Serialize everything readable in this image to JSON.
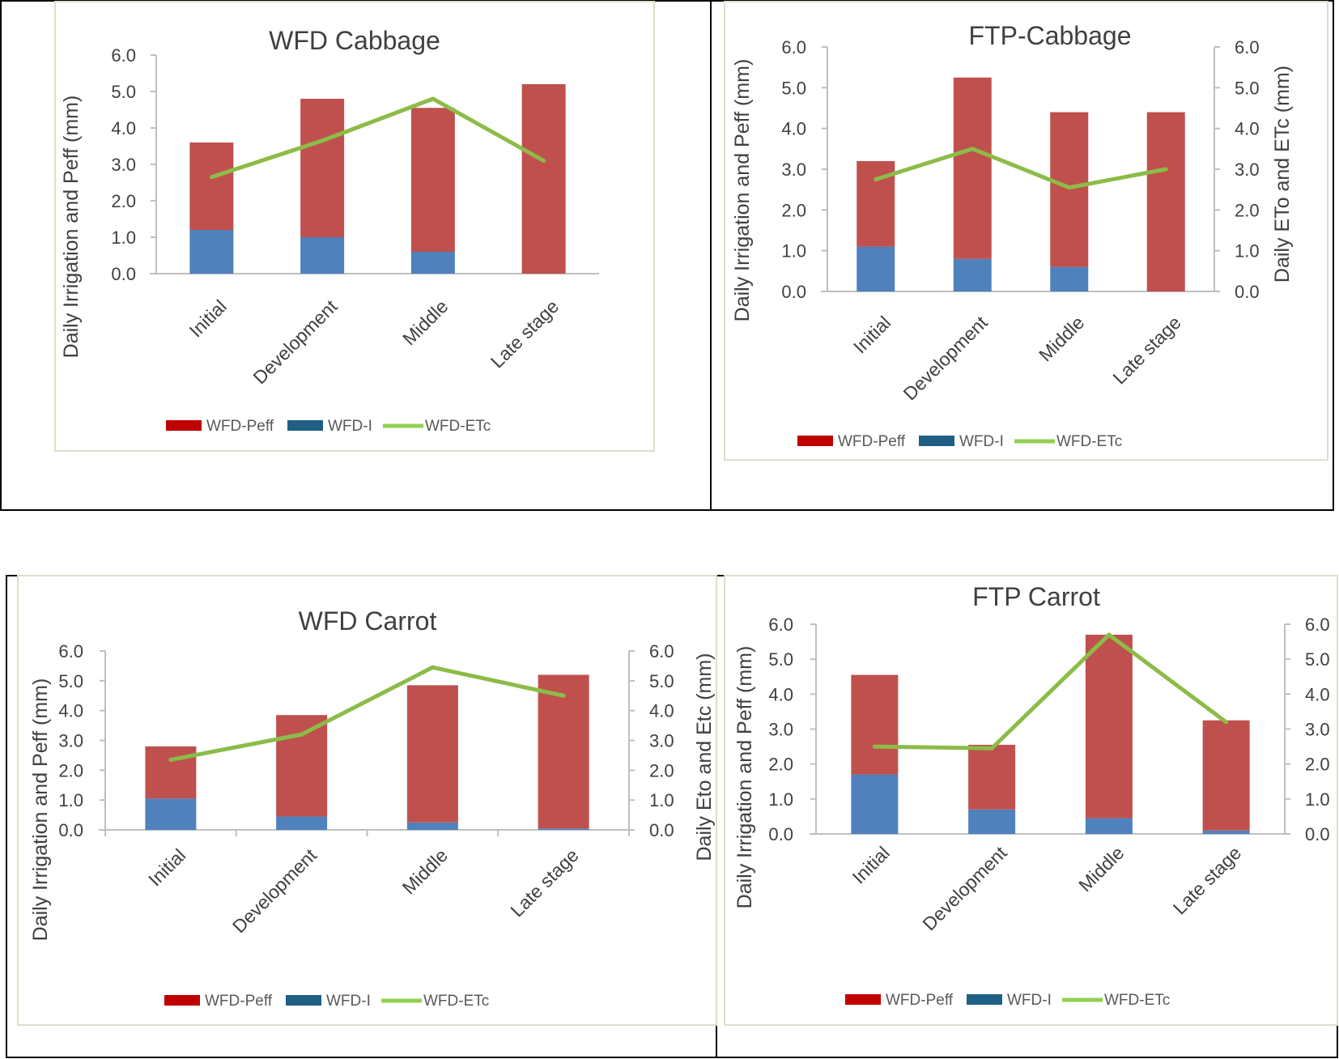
{
  "colors": {
    "peff": "#c0504d",
    "irrigation": "#4f81bd",
    "etc": "#8cbc48",
    "legend_peff": "#c00000",
    "legend_irrigation": "#1f5f84",
    "legend_etc": "#92d050",
    "axis": "#bfbfbf",
    "border": "#000000",
    "frame": "#d9e1c8"
  },
  "chart_data": [
    {
      "id": "wfd-cabbage",
      "type": "bar",
      "stacked": true,
      "title": "WFD Cabbage",
      "categories": [
        "Initial",
        "Development",
        "Middle",
        "Late stage"
      ],
      "series": [
        {
          "name": "WFD-I",
          "kind": "bar",
          "values": [
            1.2,
            1.0,
            0.6,
            0.0
          ]
        },
        {
          "name": "WFD-Peff",
          "kind": "bar",
          "values": [
            2.4,
            3.8,
            3.95,
            5.2
          ]
        },
        {
          "name": "WFD-ETc",
          "kind": "line",
          "values": [
            2.65,
            3.65,
            4.8,
            3.1
          ]
        }
      ],
      "legend": [
        "WFD-Peff",
        "WFD-I",
        "WFD-ETc"
      ],
      "ylabel": "Daily Irrigation and Peff (mm)",
      "y2label": "",
      "ylim": [
        0,
        6
      ],
      "yticks": [
        "0.0",
        "1.0",
        "2.0",
        "3.0",
        "4.0",
        "5.0",
        "6.0"
      ],
      "y2ticks": []
    },
    {
      "id": "ftp-cabbage",
      "type": "bar",
      "stacked": true,
      "title": "FTP-Cabbage",
      "categories": [
        "Initial",
        "Development",
        "Middle",
        "Late stage"
      ],
      "series": [
        {
          "name": "WFD-I",
          "kind": "bar",
          "values": [
            1.1,
            0.8,
            0.6,
            0.0
          ]
        },
        {
          "name": "WFD-Peff",
          "kind": "bar",
          "values": [
            2.1,
            4.45,
            3.8,
            4.4
          ]
        },
        {
          "name": "WFD-ETc",
          "kind": "line",
          "values": [
            2.75,
            3.5,
            2.55,
            3.0
          ]
        }
      ],
      "legend": [
        "WFD-Peff",
        "WFD-I",
        "WFD-ETc"
      ],
      "ylabel": "Daily Irrigation and Peff (mm)",
      "y2label": "Daily ETo and ETc (mm)",
      "ylim": [
        0,
        6
      ],
      "yticks": [
        "0.0",
        "1.0",
        "2.0",
        "3.0",
        "4.0",
        "5.0",
        "6.0"
      ],
      "y2ticks": [
        "0.0",
        "1.0",
        "2.0",
        "3.0",
        "4.0",
        "5.0",
        "6.0"
      ]
    },
    {
      "id": "wfd-carrot",
      "type": "bar",
      "stacked": true,
      "title": "WFD Carrot",
      "categories": [
        "Initial",
        "Development",
        "Middle",
        "Late stage"
      ],
      "series": [
        {
          "name": "WFD-I",
          "kind": "bar",
          "values": [
            1.05,
            0.45,
            0.25,
            0.05
          ]
        },
        {
          "name": "WFD-Peff",
          "kind": "bar",
          "values": [
            1.75,
            3.4,
            4.6,
            5.15
          ]
        },
        {
          "name": "WFD-ETc",
          "kind": "line",
          "values": [
            2.35,
            3.2,
            5.45,
            4.5
          ]
        }
      ],
      "legend": [
        "WFD-Peff",
        "WFD-I",
        "WFD-ETc"
      ],
      "ylabel": "Daily Irrigation and Peff (mm)",
      "y2label": "Daily Eto and Etc (mm)",
      "ylim": [
        0,
        6
      ],
      "yticks": [
        "0.0",
        "1.0",
        "2.0",
        "3.0",
        "4.0",
        "5.0",
        "6.0"
      ],
      "y2ticks": [
        "0.0",
        "1.0",
        "2.0",
        "3.0",
        "4.0",
        "5.0",
        "6.0"
      ]
    },
    {
      "id": "ftp-carrot",
      "type": "bar",
      "stacked": true,
      "title": "FTP Carrot",
      "categories": [
        "Initial",
        "Development",
        "Middle",
        "Late stage"
      ],
      "series": [
        {
          "name": "WFD-I",
          "kind": "bar",
          "values": [
            1.7,
            0.7,
            0.45,
            0.1
          ]
        },
        {
          "name": "WFD-Peff",
          "kind": "bar",
          "values": [
            2.85,
            1.85,
            5.25,
            3.15
          ]
        },
        {
          "name": "WFD-ETc",
          "kind": "line",
          "values": [
            2.5,
            2.45,
            5.7,
            3.2
          ]
        }
      ],
      "legend": [
        "WFD-Peff",
        "WFD-I",
        "WFD-ETc"
      ],
      "ylabel": "Daily Irrigation and Peff (mm)",
      "y2label": "",
      "ylim": [
        0,
        6
      ],
      "yticks": [
        "0.0",
        "1.0",
        "2.0",
        "3.0",
        "4.0",
        "5.0",
        "6.0"
      ],
      "y2ticks": [
        "0.0",
        "1.0",
        "2.0",
        "3.0",
        "4.0",
        "5.0",
        "6.0"
      ]
    }
  ]
}
